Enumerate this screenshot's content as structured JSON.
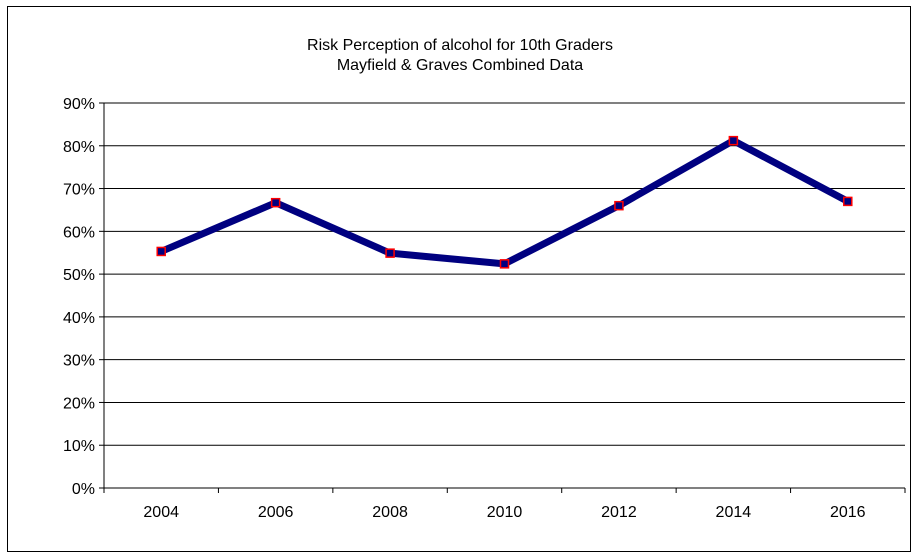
{
  "chart_data": {
    "type": "line",
    "title_lines": [
      "Risk Perception of alcohol for 10th Graders",
      "Mayfield & Graves Combined Data"
    ],
    "categories": [
      "2004",
      "2006",
      "2008",
      "2010",
      "2012",
      "2014",
      "2016"
    ],
    "series": [
      {
        "values": [
          0.553,
          0.667,
          0.549,
          0.524,
          0.66,
          0.812,
          0.67
        ]
      }
    ],
    "ylim": [
      0,
      0.9
    ],
    "yticks": [
      "0%",
      "10%",
      "20%",
      "30%",
      "40%",
      "50%",
      "60%",
      "70%",
      "80%",
      "90%"
    ],
    "grid": true,
    "legend": "none",
    "colors": {
      "line": "#000080",
      "marker_edge": "#ff0000",
      "marker_fill": "#000080"
    }
  }
}
